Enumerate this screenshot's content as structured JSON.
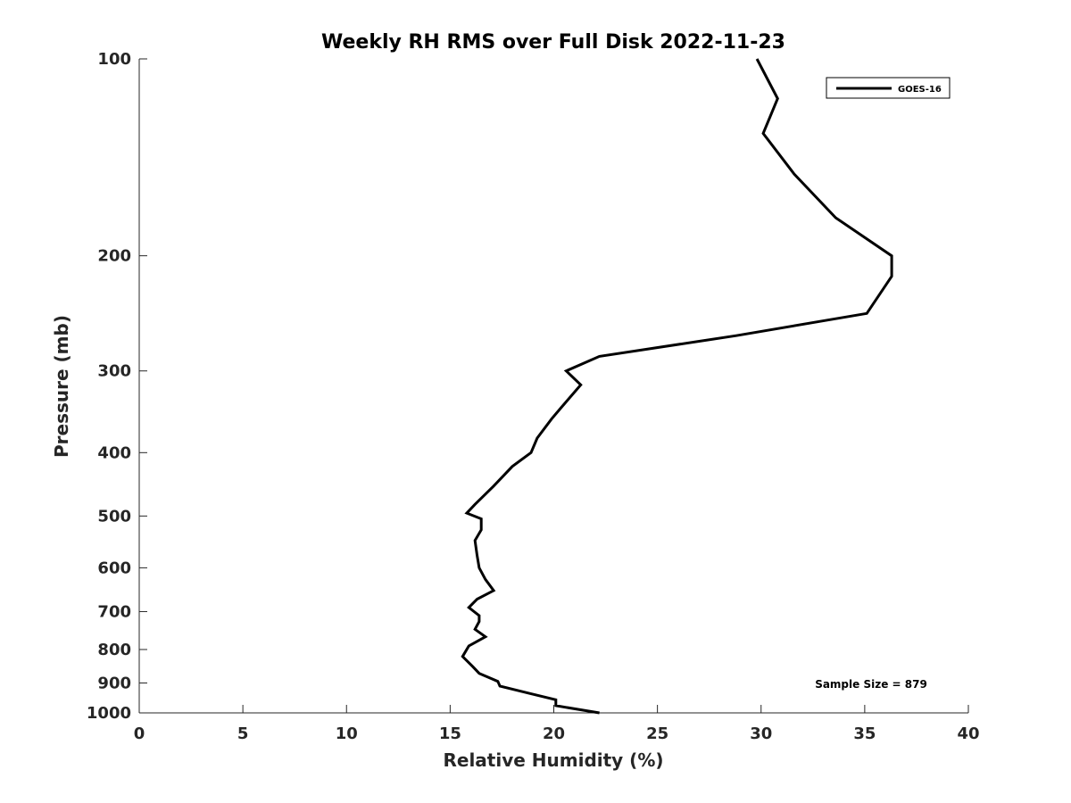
{
  "chart_data": {
    "type": "line",
    "title": "Weekly RH RMS over Full Disk 2022-11-23",
    "xlabel": "Relative Humidity (%)",
    "ylabel": "Pressure (mb)",
    "xlim": [
      0,
      40
    ],
    "ylim": [
      100,
      1000
    ],
    "y_scale": "log",
    "y_reversed": true,
    "grid": false,
    "legend_position": "top-right",
    "xticks": [
      0,
      5,
      10,
      15,
      20,
      25,
      30,
      35,
      40
    ],
    "xtick_labels": [
      "0",
      "5",
      "10",
      "15",
      "20",
      "25",
      "30",
      "35",
      "40"
    ],
    "yticks": [
      100,
      200,
      300,
      400,
      500,
      600,
      700,
      800,
      900,
      1000
    ],
    "ytick_labels": [
      "100",
      "200",
      "300",
      "400",
      "500",
      "600",
      "700",
      "800",
      "900",
      "1000"
    ],
    "series": [
      {
        "name": "GOES-16",
        "color": "#000000",
        "points": [
          [
            29.8,
            100
          ],
          [
            30.8,
            115
          ],
          [
            30.1,
            130
          ],
          [
            31.6,
            150
          ],
          [
            33.6,
            175
          ],
          [
            36.3,
            200
          ],
          [
            36.3,
            215
          ],
          [
            35.1,
            245
          ],
          [
            28.8,
            265
          ],
          [
            22.2,
            285
          ],
          [
            20.6,
            300
          ],
          [
            21.3,
            315
          ],
          [
            20.4,
            340
          ],
          [
            19.9,
            355
          ],
          [
            19.2,
            380
          ],
          [
            18.9,
            400
          ],
          [
            18.0,
            420
          ],
          [
            17.1,
            450
          ],
          [
            16.2,
            480
          ],
          [
            15.8,
            495
          ],
          [
            16.5,
            505
          ],
          [
            16.5,
            525
          ],
          [
            16.2,
            545
          ],
          [
            16.3,
            575
          ],
          [
            16.4,
            600
          ],
          [
            16.7,
            625
          ],
          [
            17.1,
            650
          ],
          [
            16.3,
            670
          ],
          [
            15.9,
            690
          ],
          [
            16.4,
            710
          ],
          [
            16.4,
            725
          ],
          [
            16.2,
            745
          ],
          [
            16.7,
            765
          ],
          [
            15.9,
            790
          ],
          [
            15.6,
            820
          ],
          [
            16.1,
            850
          ],
          [
            16.4,
            870
          ],
          [
            17.3,
            895
          ],
          [
            17.4,
            910
          ],
          [
            18.9,
            935
          ],
          [
            20.1,
            955
          ],
          [
            20.1,
            975
          ],
          [
            22.2,
            1000
          ]
        ]
      }
    ],
    "annotations": [
      {
        "text": "Sample Size = 879"
      }
    ]
  }
}
